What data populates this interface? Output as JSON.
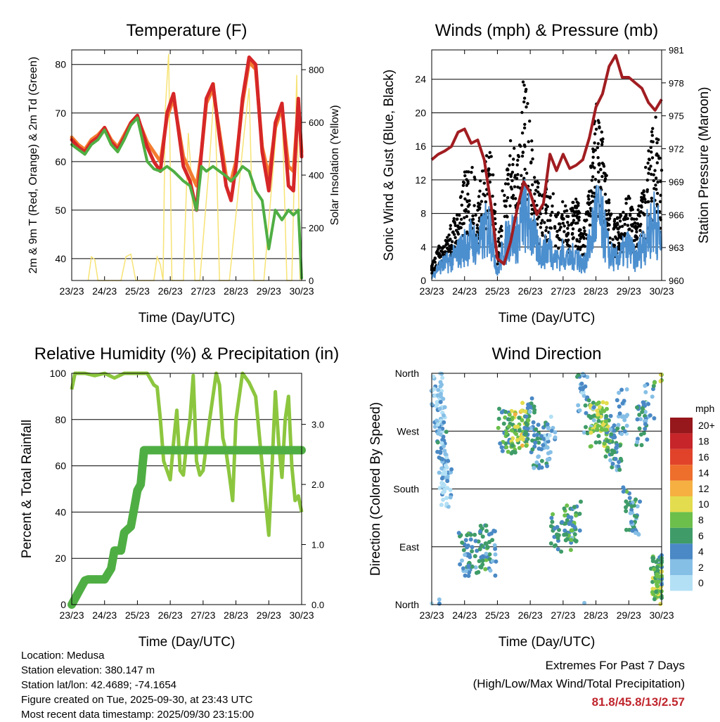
{
  "chart_data": [
    {
      "type": "line",
      "title": "Temperature (F)",
      "xlabel": "Time (Day/UTC)",
      "ylabel": "2m & 9m T (Red, Orange) & 2m Td (Green)",
      "ylabel_right": "Solar Insolation (Yellow)",
      "x_ticks": [
        "23/23",
        "24/23",
        "25/23",
        "26/23",
        "27/23",
        "28/23",
        "29/23",
        "30/23"
      ],
      "y_ticks": [
        40,
        50,
        60,
        70,
        80
      ],
      "y_right_ticks": [
        0,
        200,
        400,
        600,
        800
      ],
      "ylim": [
        35.5,
        83
      ],
      "ylim_right": [
        0,
        875
      ],
      "series": [
        {
          "name": "2m T",
          "color": "#d62728",
          "x": [
            0,
            0.2,
            0.4,
            0.6,
            0.8,
            1.0,
            1.2,
            1.4,
            1.6,
            1.8,
            2.0,
            2.3,
            2.5,
            2.7,
            2.9,
            3.1,
            3.4,
            3.6,
            3.8,
            3.95,
            4.1,
            4.3,
            4.5,
            4.7,
            4.85,
            5.0,
            5.2,
            5.4,
            5.6,
            5.8,
            6.0,
            6.2,
            6.4,
            6.6,
            6.75,
            6.9,
            7.0
          ],
          "values": [
            64.5,
            63,
            62,
            64,
            65,
            67,
            64,
            62.5,
            65,
            68,
            69.5,
            63,
            60,
            58,
            70,
            74,
            59,
            56,
            50,
            62,
            73,
            76,
            65,
            55,
            52,
            59,
            73,
            81.5,
            80,
            62,
            54,
            68,
            72,
            55,
            54,
            73,
            61
          ]
        },
        {
          "name": "9m T",
          "color": "#f47c30",
          "x": [
            0,
            0.2,
            0.4,
            0.6,
            0.8,
            1.0,
            1.2,
            1.4,
            1.6,
            1.8,
            2.0,
            2.3,
            2.5,
            2.7,
            2.9,
            3.1,
            3.4,
            3.6,
            3.8,
            3.95,
            4.1,
            4.3,
            4.5,
            4.7,
            4.85,
            5.0,
            5.2,
            5.4,
            5.6,
            5.8,
            6.0,
            6.2,
            6.4,
            6.6,
            6.75,
            6.9,
            7.0
          ],
          "values": [
            65,
            63.5,
            62.5,
            64.5,
            65.5,
            67,
            64.5,
            63,
            65.5,
            68,
            69,
            64,
            62,
            60,
            69,
            73,
            61,
            58,
            55,
            62,
            72,
            75,
            66,
            57,
            56,
            60,
            72,
            80.5,
            79,
            63,
            57,
            67,
            71,
            59,
            58,
            72,
            62
          ]
        },
        {
          "name": "2m Td",
          "color": "#4fae43",
          "x": [
            0,
            0.2,
            0.4,
            0.6,
            0.8,
            1.0,
            1.2,
            1.4,
            1.6,
            1.8,
            2.0,
            2.3,
            2.5,
            2.7,
            2.9,
            3.1,
            3.4,
            3.6,
            3.8,
            3.95,
            4.1,
            4.3,
            4.5,
            4.7,
            4.85,
            5.0,
            5.2,
            5.4,
            5.6,
            5.8,
            6.0,
            6.2,
            6.4,
            6.6,
            6.75,
            6.9,
            7.0
          ],
          "values": [
            63.5,
            62.5,
            61.5,
            63.5,
            64.5,
            66.5,
            63.5,
            62,
            64.5,
            67.5,
            69,
            60,
            58.5,
            58,
            59,
            58,
            56,
            55,
            50,
            59,
            58,
            59,
            58,
            57,
            56,
            57,
            59,
            58,
            54,
            52,
            42,
            50,
            48,
            50,
            49,
            50,
            36
          ]
        },
        {
          "name": "Solar Insolation",
          "axis": "right",
          "color": "#f7e374",
          "x": [
            0.5,
            0.6,
            0.7,
            0.8,
            1.5,
            1.65,
            1.8,
            1.95,
            2.5,
            2.6,
            2.7,
            2.78,
            2.85,
            2.95,
            3.05,
            3.4,
            3.55,
            3.65,
            3.75,
            3.9,
            4.2,
            4.35,
            4.5,
            4.62,
            4.8,
            5.25,
            5.4,
            5.55,
            5.7,
            5.85,
            6.25,
            6.4,
            6.55,
            6.7,
            6.85,
            6.95
          ],
          "values": [
            0,
            90,
            80,
            0,
            0,
            90,
            100,
            0,
            0,
            90,
            60,
            0,
            650,
            860,
            0,
            0,
            560,
            380,
            0,
            0,
            460,
            750,
            0,
            0,
            0,
            560,
            730,
            0,
            0,
            0,
            600,
            660,
            0,
            0,
            780,
            0
          ]
        }
      ]
    },
    {
      "type": "scatter",
      "title": "Winds (mph) & Pressure (mb)",
      "xlabel": "Time (Day/UTC)",
      "ylabel": "Sonic Wind & Gust (Blue, Black)",
      "ylabel_right": "Station Pressure (Maroon)",
      "x_ticks": [
        "23/23",
        "24/23",
        "25/23",
        "26/23",
        "27/23",
        "28/23",
        "29/23",
        "30/23"
      ],
      "y_ticks": [
        0,
        4,
        8,
        12,
        16,
        20,
        24
      ],
      "y_right_ticks": [
        960,
        963,
        966,
        969,
        972,
        975,
        978,
        981
      ],
      "ylim": [
        0,
        27.5
      ],
      "ylim_right": [
        960,
        981
      ],
      "series": [
        {
          "name": "Gust",
          "color": "#000000",
          "x": [
            0,
            0.2,
            0.4,
            0.6,
            0.8,
            1.0,
            1.2,
            1.4,
            1.6,
            1.8,
            2.0,
            2.2,
            2.4,
            2.6,
            2.8,
            3.0,
            3.2,
            3.4,
            3.6,
            3.8,
            4.0,
            4.2,
            4.4,
            4.6,
            4.8,
            5.0,
            5.2,
            5.4,
            5.6,
            5.8,
            6.0,
            6.2,
            6.4,
            6.6,
            6.8,
            7.0
          ],
          "values": [
            1.5,
            3.5,
            4,
            6,
            7,
            11,
            12,
            9,
            12,
            14,
            4,
            11,
            15,
            12,
            21,
            16,
            10,
            9,
            11,
            7,
            8,
            7,
            9,
            5,
            10,
            18,
            15,
            8,
            6,
            7,
            9,
            6,
            9,
            13,
            17,
            11
          ]
        },
        {
          "name": "Sonic Wind",
          "color": "#4c8fcf",
          "x": [
            0,
            0.2,
            0.4,
            0.6,
            0.8,
            1.0,
            1.2,
            1.4,
            1.6,
            1.8,
            2.0,
            2.2,
            2.4,
            2.6,
            2.8,
            3.0,
            3.2,
            3.4,
            3.6,
            3.8,
            4.0,
            4.2,
            4.4,
            4.6,
            4.8,
            5.0,
            5.2,
            5.4,
            5.6,
            5.8,
            6.0,
            6.2,
            6.4,
            6.6,
            6.8,
            7.0
          ],
          "values": [
            0.5,
            2,
            2.5,
            3,
            4,
            5,
            6,
            5,
            7,
            8,
            1,
            5,
            7,
            6,
            10,
            8,
            5,
            4,
            5,
            3,
            4,
            3,
            4,
            2,
            5,
            10,
            8,
            4,
            3,
            4,
            5,
            3,
            5,
            7,
            9,
            5
          ]
        },
        {
          "name": "Station Pressure",
          "axis": "right",
          "color": "#a11d21",
          "x": [
            0,
            0.2,
            0.4,
            0.6,
            0.8,
            1.0,
            1.2,
            1.4,
            1.6,
            1.8,
            2.0,
            2.2,
            2.4,
            2.6,
            2.8,
            3.0,
            3.2,
            3.4,
            3.6,
            3.8,
            4.0,
            4.2,
            4.4,
            4.6,
            4.8,
            5.0,
            5.2,
            5.4,
            5.6,
            5.8,
            6.0,
            6.2,
            6.4,
            6.6,
            6.8,
            7.0
          ],
          "values": [
            971,
            971.5,
            971.8,
            972.2,
            973.5,
            973.8,
            972.5,
            972.8,
            971,
            967,
            962,
            961.5,
            963.5,
            966.5,
            969,
            968,
            966,
            967,
            971.5,
            970,
            971.5,
            970.2,
            970.5,
            971,
            973,
            975.8,
            977,
            979.5,
            980.5,
            978.5,
            978.5,
            978,
            977.5,
            976.2,
            975.5,
            976.5
          ]
        }
      ]
    },
    {
      "type": "line",
      "title": "Relative Humidity (%) & Precipitation (in)",
      "xlabel": "Time (Day/UTC)",
      "ylabel": "Percent & Total Rainfall",
      "x_ticks": [
        "23/23",
        "24/23",
        "25/23",
        "26/23",
        "27/23",
        "28/23",
        "29/23",
        "30/23"
      ],
      "y_ticks": [
        0,
        20,
        40,
        60,
        80,
        100
      ],
      "y_right_ticks": [
        "0.0",
        "1.0",
        "2.0",
        "3.0"
      ],
      "ylim": [
        0,
        100
      ],
      "ylim_right": [
        0,
        3.85
      ],
      "series": [
        {
          "name": "Relative Humidity",
          "color": "#8cc63f",
          "x": [
            0,
            0.1,
            0.4,
            0.7,
            1.0,
            1.3,
            1.6,
            1.9,
            2.1,
            2.3,
            2.5,
            2.6,
            2.7,
            2.8,
            2.9,
            3.0,
            3.1,
            3.2,
            3.3,
            3.4,
            3.5,
            3.6,
            3.7,
            3.8,
            3.9,
            4.0,
            4.2,
            4.4,
            4.5,
            4.6,
            4.7,
            4.8,
            4.9,
            5.0,
            5.2,
            5.4,
            5.6,
            5.8,
            6.0,
            6.1,
            6.2,
            6.3,
            6.4,
            6.5,
            6.6,
            6.7,
            6.8,
            6.9,
            7.0
          ],
          "values": [
            93,
            100,
            100,
            99,
            100,
            98,
            100,
            100,
            100,
            100,
            95,
            94,
            80,
            62,
            58,
            54,
            70,
            84,
            58,
            56,
            70,
            80,
            99,
            62,
            56,
            58,
            80,
            100,
            95,
            72,
            66,
            56,
            45,
            80,
            100,
            96,
            90,
            60,
            30,
            60,
            92,
            70,
            55,
            80,
            90,
            60,
            45,
            47,
            40
          ]
        },
        {
          "name": "Total Rainfall",
          "axis": "right",
          "color": "#4fae43",
          "x": [
            0,
            0.1,
            0.2,
            0.3,
            0.4,
            0.5,
            0.6,
            1.0,
            1.2,
            1.3,
            1.5,
            1.6,
            1.8,
            1.9,
            2.0,
            2.1,
            2.2,
            7.0
          ],
          "values": [
            0,
            0.1,
            0.2,
            0.3,
            0.4,
            0.42,
            0.42,
            0.42,
            0.6,
            0.9,
            0.9,
            1.2,
            1.3,
            1.6,
            1.9,
            2.0,
            2.57,
            2.57
          ]
        }
      ]
    },
    {
      "type": "scatter",
      "title": "Wind Direction",
      "xlabel": "Time (Day/UTC)",
      "ylabel": "Direction (Colored By Speed)",
      "x_ticks": [
        "23/23",
        "24/23",
        "25/23",
        "26/23",
        "27/23",
        "28/23",
        "29/23",
        "30/23"
      ],
      "y_ticks": [
        "North",
        "East",
        "South",
        "West",
        "North"
      ],
      "ylim": [
        0,
        360
      ],
      "colorbar": {
        "title": "mph",
        "labels": [
          "0",
          "2",
          "4",
          "6",
          "8",
          "10",
          "12",
          "14",
          "16",
          "18",
          "20+"
        ],
        "colors": [
          "#b3e0f5",
          "#86bfe6",
          "#4a89c5",
          "#3f9c68",
          "#6cbf4b",
          "#e3dc4e",
          "#f5b041",
          "#ee6e2c",
          "#e0432a",
          "#c62529",
          "#96171c"
        ]
      },
      "series": [
        {
          "name": "Direction",
          "x": [
            0.15,
            0.25,
            0.3,
            0.4,
            0.45,
            1.0,
            1.2,
            1.4,
            1.6,
            1.8,
            2.2,
            2.4,
            2.6,
            2.8,
            3.0,
            3.2,
            3.4,
            3.6,
            3.8,
            4.2,
            4.4,
            4.6,
            4.8,
            5.0,
            5.2,
            5.4,
            5.6,
            5.8,
            6.0,
            6.2,
            6.4,
            6.6,
            6.8,
            6.9,
            7.0
          ],
          "values": [
            340,
            300,
            250,
            210,
            185,
            80,
            75,
            85,
            90,
            80,
            270,
            265,
            280,
            275,
            290,
            240,
            250,
            260,
            110,
            120,
            130,
            330,
            300,
            280,
            280,
            260,
            240,
            300,
            150,
            140,
            280,
            310,
            40,
            20,
            45
          ],
          "speeds": [
            1,
            2,
            3,
            1,
            1,
            4,
            5,
            5,
            6,
            4,
            6,
            7,
            9,
            8,
            5,
            4,
            4,
            3,
            6,
            6,
            5,
            3,
            4,
            8,
            9,
            6,
            5,
            3,
            5,
            4,
            5,
            3,
            7,
            8,
            5
          ]
        }
      ]
    }
  ],
  "info": {
    "location": "Location: Medusa",
    "elevation": "Station elevation: 380.147 m",
    "latlon": "Station lat/lon: 42.4689; -74.1654",
    "created": "Figure created on Tue, 2025-09-30, at 23:43 UTC",
    "recent": "Most recent data timestamp: 2025/09/30 23:15:00"
  },
  "extremes": {
    "title": "Extremes For Past 7 Days",
    "subtitle": "(High/Low/Max Wind/Total Precipitation)",
    "values": "81.8/45.8/13/2.57"
  }
}
